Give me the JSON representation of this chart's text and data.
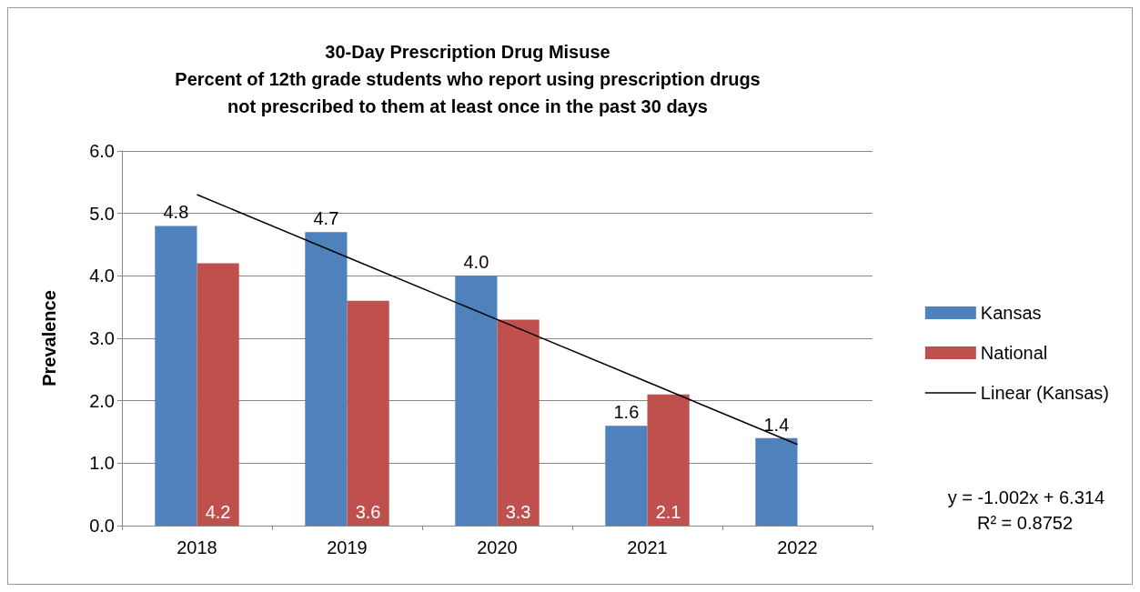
{
  "chart_data": {
    "type": "bar",
    "title": "30-Day Prescription Drug Misuse\nPercent of 12th grade students who report using prescription drugs\nnot prescribed to them at least once in the past 30 days",
    "ylabel": "Prevalence",
    "categories": [
      "2018",
      "2019",
      "2020",
      "2021",
      "2022"
    ],
    "series": [
      {
        "name": "Kansas",
        "color": "#4f81bd",
        "values": [
          4.8,
          4.7,
          4.0,
          1.6,
          1.4
        ],
        "value_labels": [
          "4.8",
          "4.7",
          "4.0",
          "1.6",
          "1.4"
        ]
      },
      {
        "name": "National",
        "color": "#c0504d",
        "values": [
          4.2,
          3.6,
          3.3,
          2.1,
          null
        ],
        "value_labels": [
          "4.2",
          "3.6",
          "3.3",
          "2.1",
          null
        ]
      },
      {
        "name": "Linear (Kansas)",
        "type": "line",
        "color": "#000000",
        "values": [
          5.3,
          4.3,
          3.3,
          2.3,
          1.3
        ],
        "marker": "none"
      }
    ],
    "ylim": [
      0,
      6
    ],
    "yticks": [
      {
        "value": 0,
        "label": "0.0"
      },
      {
        "value": 1,
        "label": "1.0"
      },
      {
        "value": 2,
        "label": "2.0"
      },
      {
        "value": 3,
        "label": "3.0"
      },
      {
        "value": 4,
        "label": "4.0"
      },
      {
        "value": 5,
        "label": "5.0"
      },
      {
        "value": 6,
        "label": "6.0"
      }
    ],
    "grid": "y",
    "legend": "right",
    "annotations": [
      "y = -1.002x + 6.314",
      "R² = 0.8752"
    ]
  }
}
